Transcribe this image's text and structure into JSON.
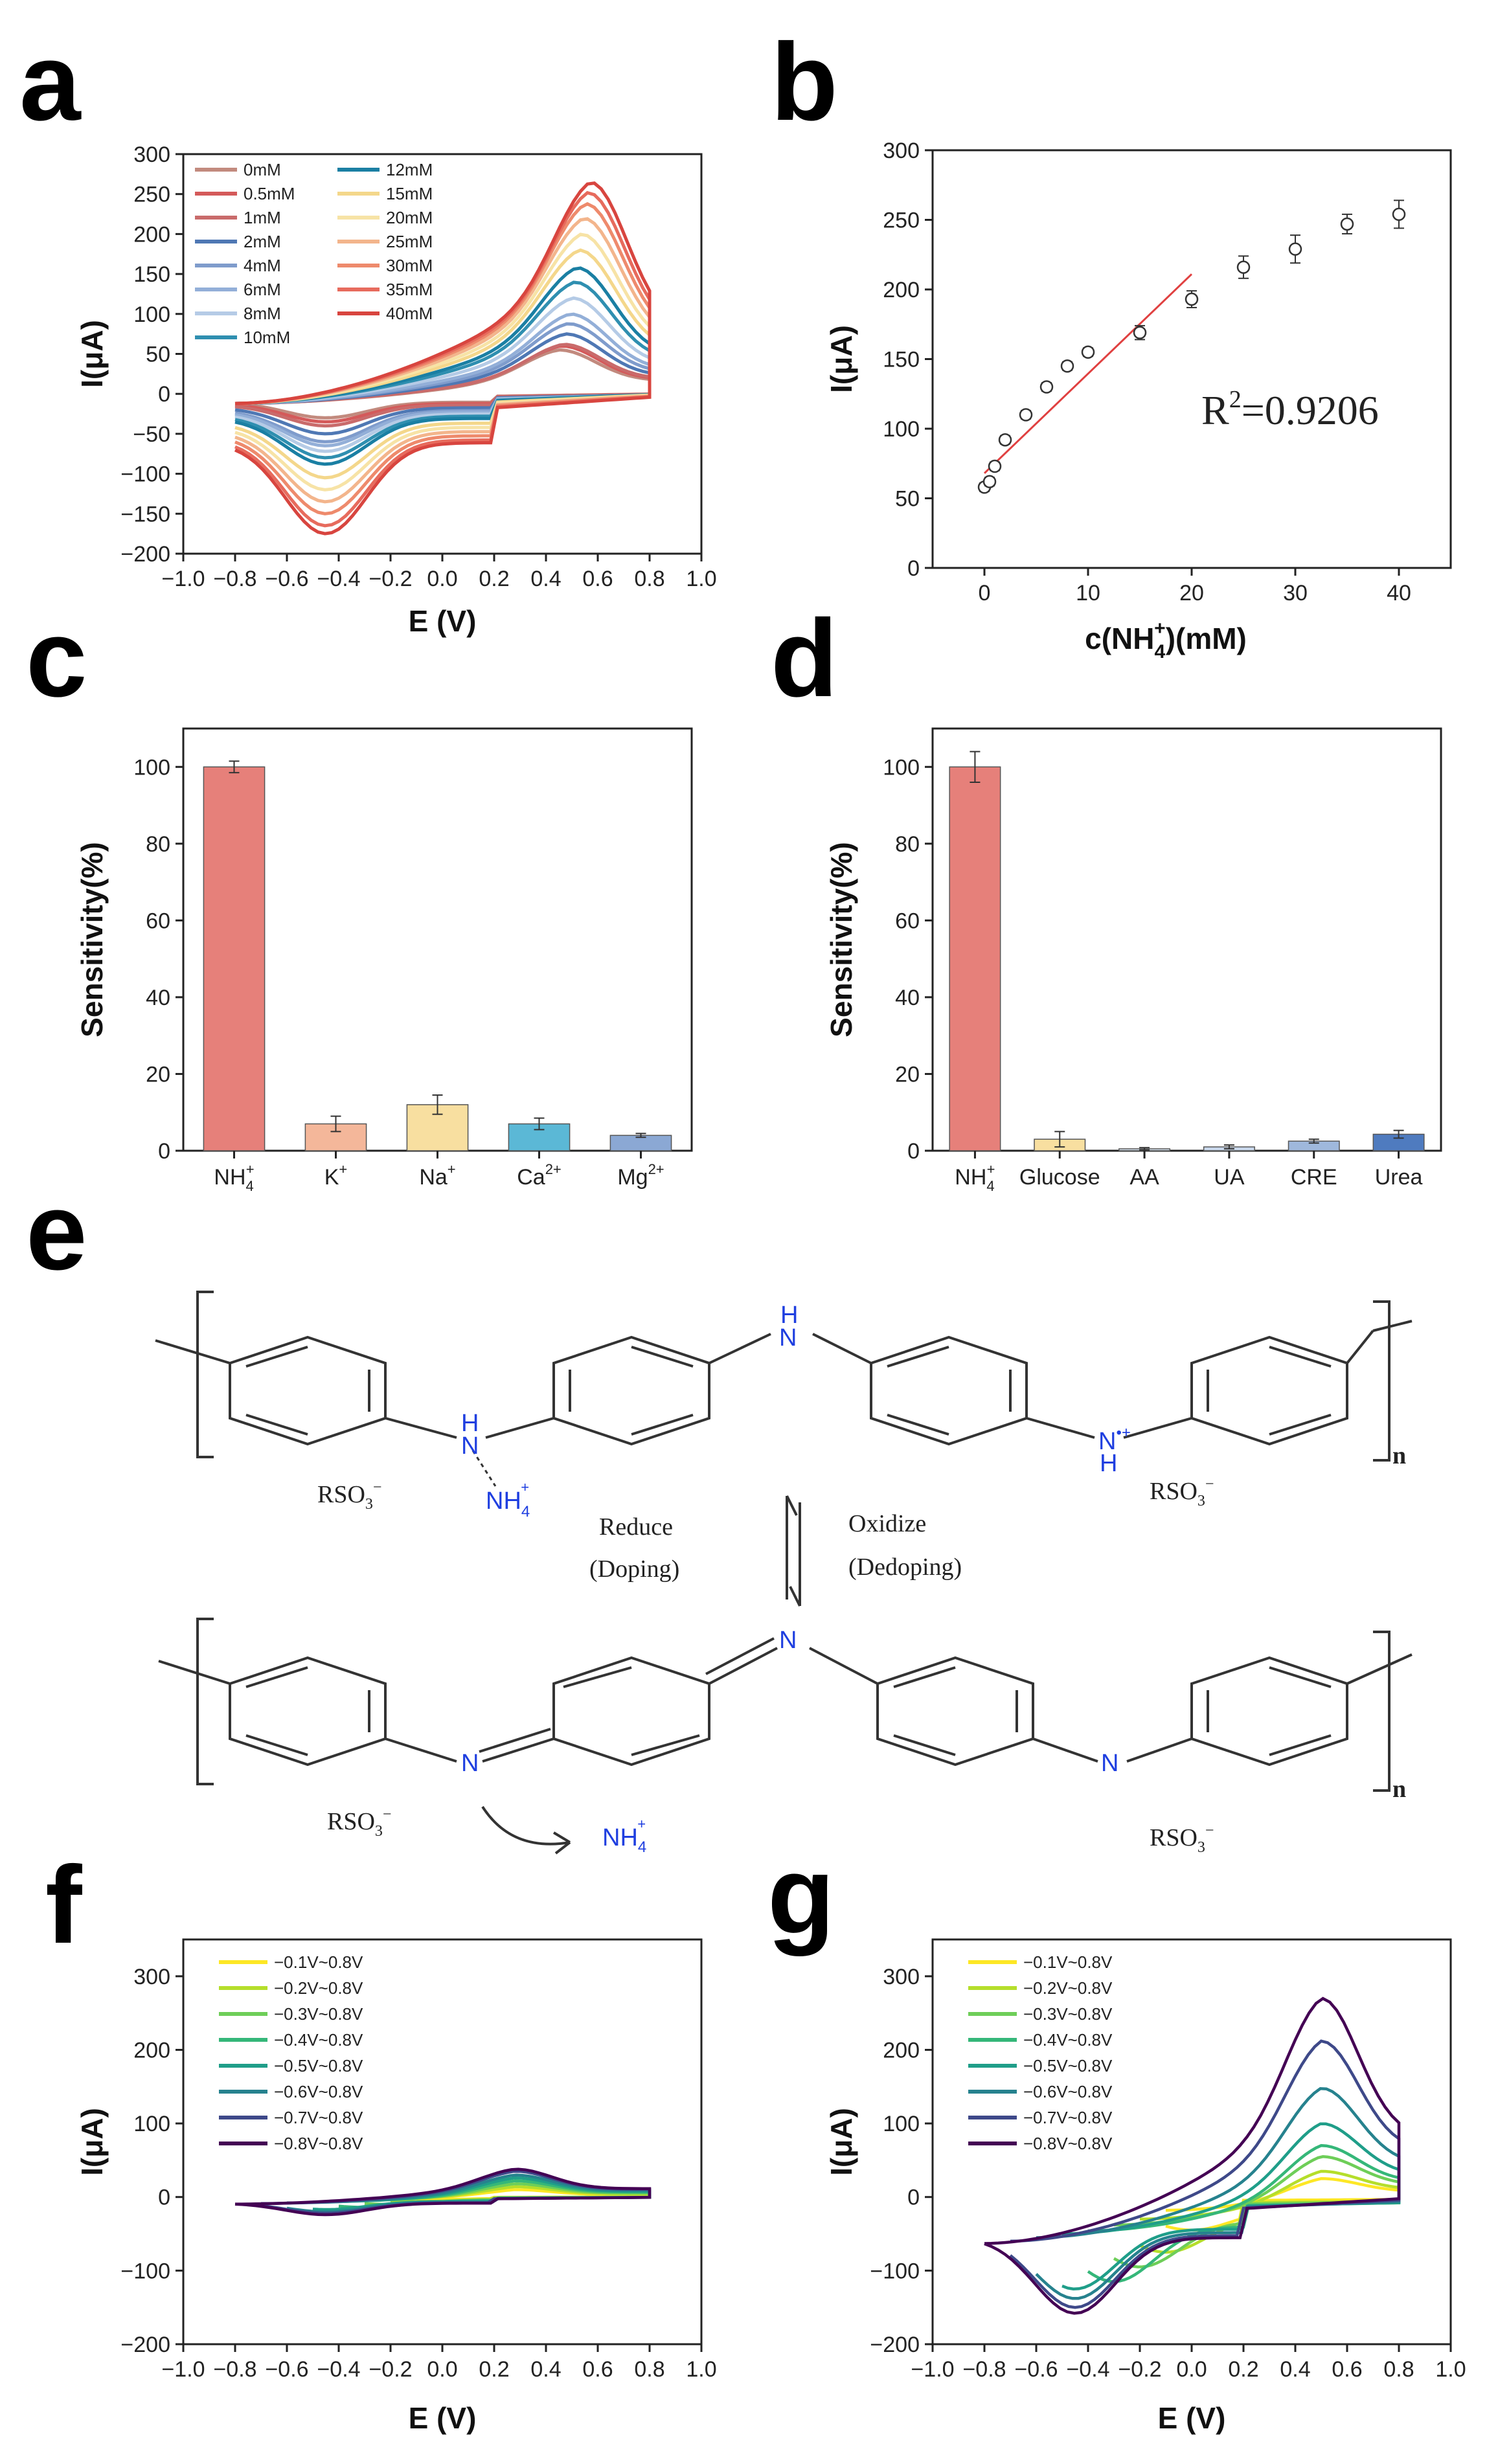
{
  "panels": {
    "a": "a",
    "b": "b",
    "c": "c",
    "d": "d",
    "e": "e",
    "f": "f",
    "g": "g"
  },
  "chart_data": [
    {
      "id": "a",
      "type": "line",
      "xlabel": "E (V)",
      "ylabel": "I(μA)",
      "xlim": [
        -1.0,
        1.0
      ],
      "ylim": [
        -200,
        300
      ],
      "xticks": [
        "−1.0",
        "−0.8",
        "−0.6",
        "−0.4",
        "−0.2",
        "0.0",
        "0.2",
        "0.4",
        "0.6",
        "0.8",
        "1.0"
      ],
      "yticks": [
        "−200",
        "−150",
        "−100",
        "−50",
        "0",
        "50",
        "100",
        "150",
        "200",
        "250",
        "300"
      ],
      "legend_position": "top-left",
      "series": [
        {
          "name": "0mM",
          "color": "#c28a7e",
          "peak_ox": 55,
          "peak_red": -30
        },
        {
          "name": "0.5mM",
          "color": "#d45a5a",
          "peak_ox": 60,
          "peak_red": -35
        },
        {
          "name": "1mM",
          "color": "#c96b6b",
          "peak_ox": 62,
          "peak_red": -40
        },
        {
          "name": "2mM",
          "color": "#4f78b4",
          "peak_ox": 75,
          "peak_red": -50
        },
        {
          "name": "4mM",
          "color": "#7f9ccc",
          "peak_ox": 88,
          "peak_red": -60
        },
        {
          "name": "6mM",
          "color": "#93afd8",
          "peak_ox": 100,
          "peak_red": -65
        },
        {
          "name": "8mM",
          "color": "#b5cbe6",
          "peak_ox": 120,
          "peak_red": -72
        },
        {
          "name": "10mM",
          "color": "#2f8fb0",
          "peak_ox": 140,
          "peak_red": -80
        },
        {
          "name": "12mM",
          "color": "#1a7fa3",
          "peak_ox": 158,
          "peak_red": -88
        },
        {
          "name": "15mM",
          "color": "#f4d78b",
          "peak_ox": 180,
          "peak_red": -105
        },
        {
          "name": "20mM",
          "color": "#f7e3a6",
          "peak_ox": 200,
          "peak_red": -120
        },
        {
          "name": "25mM",
          "color": "#f3b58c",
          "peak_ox": 220,
          "peak_red": -135
        },
        {
          "name": "30mM",
          "color": "#ee8a6c",
          "peak_ox": 238,
          "peak_red": -150
        },
        {
          "name": "35mM",
          "color": "#e76b5d",
          "peak_ox": 252,
          "peak_red": -165
        },
        {
          "name": "40mM",
          "color": "#d8453f",
          "peak_ox": 265,
          "peak_red": -175
        }
      ]
    },
    {
      "id": "b",
      "type": "scatter",
      "xlabel": "c(NH",
      "xlabel_sub": "4",
      "xlabel_sup": "+",
      "xlabel_tail": ")(mM)",
      "ylabel": "I(μA)",
      "xlim": [
        -5,
        45
      ],
      "ylim": [
        0,
        300
      ],
      "xticks": [
        "0",
        "10",
        "20",
        "30",
        "40"
      ],
      "yticks": [
        "0",
        "50",
        "100",
        "150",
        "200",
        "250",
        "300"
      ],
      "annotation": "R",
      "annotation_sup": "2",
      "annotation_tail": "=0.9206",
      "x": [
        0,
        0.5,
        1,
        2,
        4,
        6,
        8,
        10,
        15,
        20,
        25,
        30,
        35,
        40
      ],
      "y": [
        58,
        62,
        73,
        92,
        110,
        130,
        145,
        155,
        169,
        193,
        216,
        229,
        247,
        254
      ],
      "yerr": [
        3,
        3,
        3,
        3,
        3,
        3,
        3,
        3,
        5,
        6,
        8,
        10,
        7,
        10
      ],
      "fit_line": {
        "x": [
          0,
          20
        ],
        "y": [
          68,
          211
        ],
        "color": "#e04040"
      }
    },
    {
      "id": "c",
      "type": "bar",
      "ylabel": "Sensitivity(%)",
      "ylim": [
        0,
        110
      ],
      "yticks": [
        "0",
        "20",
        "40",
        "60",
        "80",
        "100"
      ],
      "categories": [
        {
          "base": "NH",
          "sub": "4",
          "sup": "+"
        },
        {
          "base": "K",
          "sub": "",
          "sup": "+"
        },
        {
          "base": "Na",
          "sub": "",
          "sup": "+"
        },
        {
          "base": "Ca",
          "sub": "",
          "sup": "2+"
        },
        {
          "base": "Mg",
          "sub": "",
          "sup": "2+"
        }
      ],
      "values": [
        100,
        7,
        12,
        7,
        4
      ],
      "errors": [
        1.5,
        2,
        2.5,
        1.5,
        0.5
      ],
      "colors": [
        "#e6807a",
        "#f4b79a",
        "#f8dfa0",
        "#5bb8d6",
        "#8ba8d4"
      ]
    },
    {
      "id": "d",
      "type": "bar",
      "ylabel": "Sensitivity(%)",
      "ylim": [
        0,
        110
      ],
      "yticks": [
        "0",
        "20",
        "40",
        "60",
        "80",
        "100"
      ],
      "categories": [
        {
          "base": "NH",
          "sub": "4",
          "sup": "+"
        },
        {
          "base": "Glucose",
          "sub": "",
          "sup": ""
        },
        {
          "base": "AA",
          "sub": "",
          "sup": ""
        },
        {
          "base": "UA",
          "sub": "",
          "sup": ""
        },
        {
          "base": "CRE",
          "sub": "",
          "sup": ""
        },
        {
          "base": "Urea",
          "sub": "",
          "sup": ""
        }
      ],
      "values": [
        100,
        3,
        0.5,
        1,
        2.5,
        4.3
      ],
      "errors": [
        4,
        2,
        0.3,
        0.5,
        0.5,
        1
      ],
      "colors": [
        "#e6807a",
        "#f8dfa0",
        "#d9e6f2",
        "#c9d8ec",
        "#9fb8dc",
        "#4f7bbf"
      ]
    },
    {
      "id": "f",
      "type": "line",
      "xlabel": "E (V)",
      "ylabel": "I(μA)",
      "xlim": [
        -1.0,
        1.0
      ],
      "ylim": [
        -200,
        350
      ],
      "xticks": [
        "−1.0",
        "−0.8",
        "−0.6",
        "−0.4",
        "−0.2",
        "0.0",
        "0.2",
        "0.4",
        "0.6",
        "0.8",
        "1.0"
      ],
      "yticks": [
        "−200",
        "−100",
        "0",
        "100",
        "200",
        "300"
      ],
      "legend_position": "top-left",
      "series": [
        {
          "name": "−0.1V~0.8V",
          "color": "#fde725",
          "vmin": -0.1,
          "peak_ox": 10,
          "peak_red": -3
        },
        {
          "name": "−0.2V~0.8V",
          "color": "#b5de2b",
          "vmin": -0.2,
          "peak_ox": 14,
          "peak_red": -6
        },
        {
          "name": "−0.3V~0.8V",
          "color": "#6ece58",
          "vmin": -0.3,
          "peak_ox": 18,
          "peak_red": -10
        },
        {
          "name": "−0.4V~0.8V",
          "color": "#35b779",
          "vmin": -0.4,
          "peak_ox": 22,
          "peak_red": -14
        },
        {
          "name": "−0.5V~0.8V",
          "color": "#1f9e89",
          "vmin": -0.5,
          "peak_ox": 26,
          "peak_red": -17
        },
        {
          "name": "−0.6V~0.8V",
          "color": "#26828e",
          "vmin": -0.6,
          "peak_ox": 30,
          "peak_red": -20
        },
        {
          "name": "−0.7V~0.8V",
          "color": "#3e4989",
          "vmin": -0.7,
          "peak_ox": 35,
          "peak_red": -22
        },
        {
          "name": "−0.8V~0.8V",
          "color": "#440154",
          "vmin": -0.8,
          "peak_ox": 38,
          "peak_red": -24
        }
      ]
    },
    {
      "id": "g",
      "type": "line",
      "xlabel": "E (V)",
      "ylabel": "I(μA)",
      "xlim": [
        -1.0,
        1.0
      ],
      "ylim": [
        -200,
        350
      ],
      "xticks": [
        "−1.0",
        "−0.8",
        "−0.6",
        "−0.4",
        "−0.2",
        "0.0",
        "0.2",
        "0.4",
        "0.6",
        "0.8",
        "1.0"
      ],
      "yticks": [
        "−200",
        "−100",
        "0",
        "100",
        "200",
        "300"
      ],
      "legend_position": "top-left",
      "series": [
        {
          "name": "−0.1V~0.8V",
          "color": "#fde725",
          "vmin": -0.1,
          "peak_ox": 25,
          "peak_red": -45
        },
        {
          "name": "−0.2V~0.8V",
          "color": "#b5de2b",
          "vmin": -0.2,
          "peak_ox": 35,
          "peak_red": -75
        },
        {
          "name": "−0.3V~0.8V",
          "color": "#6ece58",
          "vmin": -0.3,
          "peak_ox": 55,
          "peak_red": -95
        },
        {
          "name": "−0.4V~0.8V",
          "color": "#35b779",
          "vmin": -0.4,
          "peak_ox": 70,
          "peak_red": -115
        },
        {
          "name": "−0.5V~0.8V",
          "color": "#1f9e89",
          "vmin": -0.5,
          "peak_ox": 100,
          "peak_red": -125
        },
        {
          "name": "−0.6V~0.8V",
          "color": "#26828e",
          "vmin": -0.6,
          "peak_ox": 148,
          "peak_red": -138
        },
        {
          "name": "−0.7V~0.8V",
          "color": "#3e4989",
          "vmin": -0.7,
          "peak_ox": 212,
          "peak_red": -150
        },
        {
          "name": "−0.8V~0.8V",
          "color": "#440154",
          "vmin": -0.8,
          "peak_ox": 270,
          "peak_red": -158
        }
      ]
    }
  ],
  "scheme_e": {
    "anion": "RSO",
    "anion_sub": "3",
    "anion_sup": "−",
    "nh4_base": "NH",
    "nh4_sub": "4",
    "nh4_sup": "+",
    "h_label": "H",
    "n_label": "N",
    "nplus_label": "N",
    "nplus_sup": "•+",
    "n_repeat": "n",
    "reduce_label": "Reduce",
    "doping_label": "(Doping)",
    "oxidize_label": "Oxidize",
    "dedoping_label": "(Dedoping)"
  }
}
